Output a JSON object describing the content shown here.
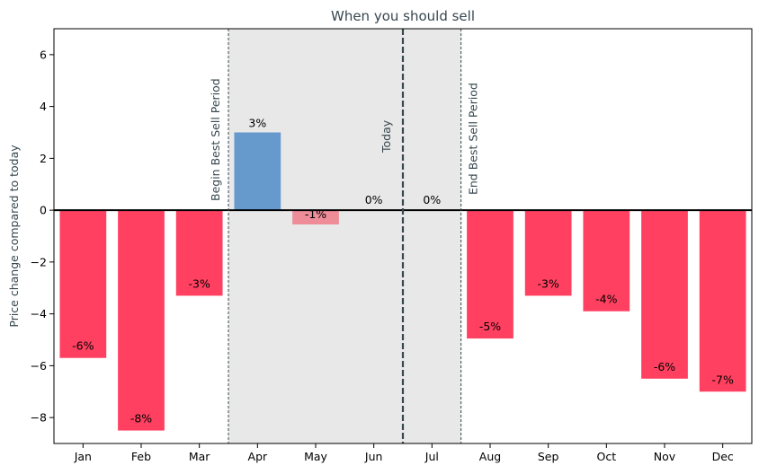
{
  "chart_data": {
    "type": "bar",
    "title": "When you should sell",
    "xlabel": "",
    "ylabel": "Price change compared to today",
    "ylim": [
      -9,
      7
    ],
    "yticks": [
      -8,
      -6,
      -4,
      -2,
      0,
      2,
      4,
      6
    ],
    "grid": false,
    "categories": [
      "Jan",
      "Feb",
      "Mar",
      "Apr",
      "May",
      "Jun",
      "Jul",
      "Aug",
      "Sep",
      "Oct",
      "Nov",
      "Dec"
    ],
    "values": [
      -5.7,
      -8.5,
      -3.3,
      3.0,
      -0.55,
      0,
      0,
      -4.95,
      -3.3,
      -3.9,
      -6.5,
      -7.0
    ],
    "labels": [
      "-6%",
      "-8%",
      "-3%",
      "3%",
      "-1%",
      "0%",
      "0%",
      "-5%",
      "-3%",
      "-4%",
      "-6%",
      "-7%"
    ],
    "bar_colors": [
      "#ff4060",
      "#ff4060",
      "#ff4060",
      "#6699cc",
      "#ee8c98",
      "#ff4060",
      "#ff4060",
      "#ff4060",
      "#ff4060",
      "#ff4060",
      "#ff4060",
      "#ff4060"
    ],
    "shaded_region": {
      "from": "Mar",
      "to": "Jul",
      "color": "#e8e8e8"
    },
    "annotations": [
      {
        "text": "Begin Best Sell Period",
        "after": "Mar",
        "style": "dotted"
      },
      {
        "text": "Today",
        "after": "Jun",
        "style": "dashed"
      },
      {
        "text": "End Best Sell Period",
        "after": "Jul",
        "style": "dotted"
      }
    ],
    "colors": {
      "title": "#37474f",
      "axis_text": "#37474f",
      "zero_line": "#000000",
      "marker": "#37474f"
    }
  }
}
